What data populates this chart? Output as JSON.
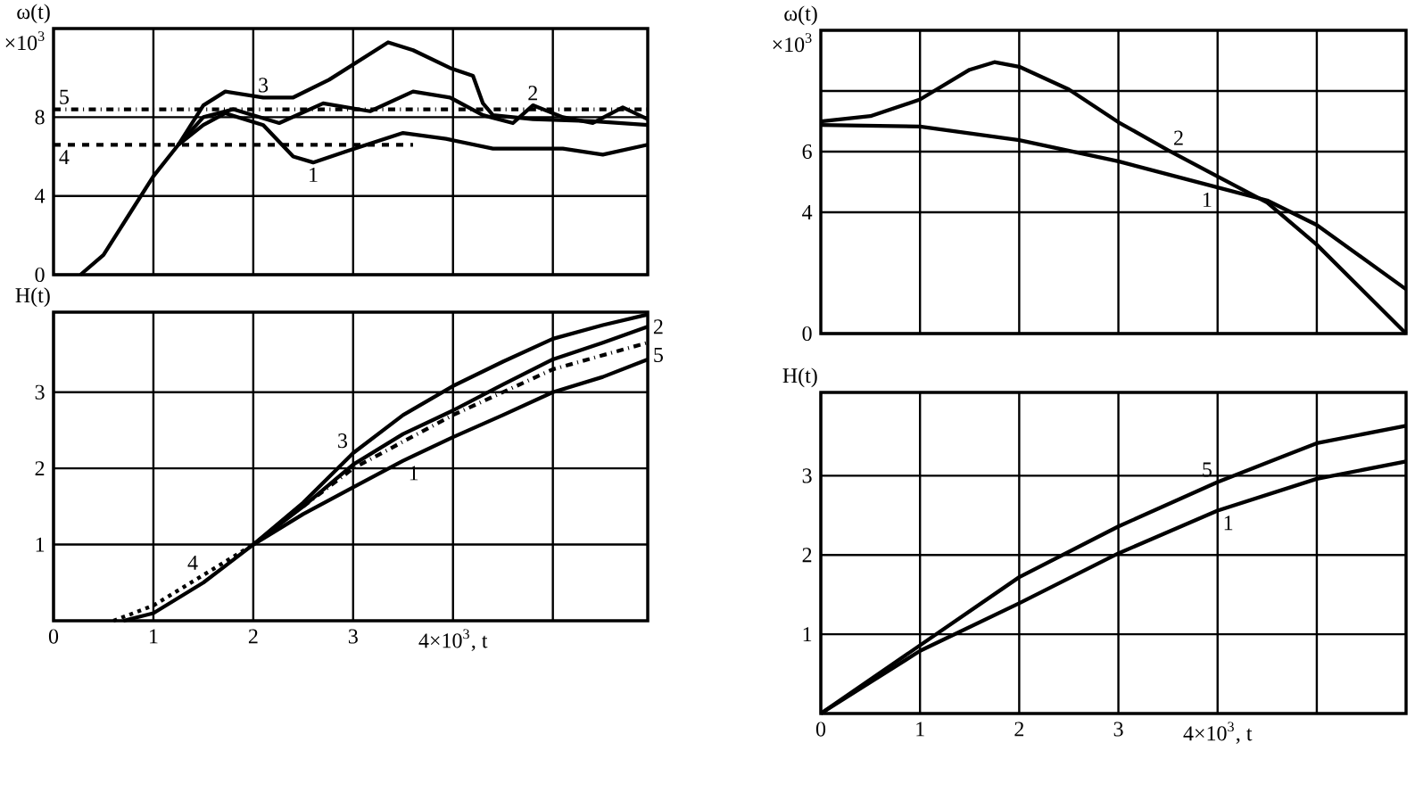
{
  "chart_data": [
    {
      "type": "line",
      "ylabel": "ω(t)",
      "annotations": [
        "×10$^{3}$"
      ],
      "xlim": [
        0,
        5.95
      ],
      "ylim": [
        0,
        12.5
      ],
      "xticks": [
        {
          "value": 1,
          "label": null
        },
        {
          "value": 2,
          "label": null
        },
        {
          "value": 3,
          "label": null
        },
        {
          "value": 4,
          "label": null
        },
        {
          "value": 5,
          "label": null
        }
      ],
      "yticks": [
        0,
        4,
        8
      ],
      "grid": true,
      "tick_labels": "y",
      "series": [
        {
          "name": "1",
          "color": "#000000",
          "line_style": "solid",
          "x": [
            0.27,
            0.5,
            0.75,
            1.0,
            1.25,
            1.5,
            1.72,
            2.1,
            2.4,
            2.6,
            2.95,
            3.5,
            3.93,
            4.4,
            5.1,
            5.5,
            5.95
          ],
          "values": [
            0,
            1.0,
            3.0,
            5.0,
            6.6,
            7.6,
            8.2,
            7.6,
            6.0,
            5.7,
            6.3,
            7.2,
            6.9,
            6.4,
            6.4,
            6.1,
            6.6
          ]
        },
        {
          "name": "2",
          "color": "#000000",
          "line_style": "solid",
          "x": [
            1.25,
            1.5,
            1.8,
            2.26,
            2.7,
            3.17,
            3.6,
            3.97,
            4.3,
            4.6,
            4.8,
            5.1,
            5.4,
            5.7,
            5.95
          ],
          "values": [
            6.6,
            8.0,
            8.4,
            7.7,
            8.7,
            8.3,
            9.3,
            9.0,
            8.1,
            7.7,
            8.6,
            8.0,
            7.7,
            8.5,
            7.9
          ]
        },
        {
          "name": "3",
          "color": "#000000",
          "line_style": "solid",
          "x": [
            1.25,
            1.5,
            1.72,
            2.1,
            2.4,
            2.76,
            3.35,
            3.6,
            3.97,
            4.2,
            4.3,
            4.4,
            4.8,
            5.4,
            5.95
          ],
          "values": [
            6.6,
            8.6,
            9.3,
            9.0,
            9.0,
            9.9,
            11.8,
            11.4,
            10.5,
            10.1,
            8.7,
            8.1,
            7.9,
            7.8,
            7.6
          ]
        },
        {
          "name": "4",
          "color": "#000000",
          "line_style": "dashed",
          "x": [
            0,
            1,
            2,
            3,
            3.6
          ],
          "values": [
            6.6,
            6.6,
            6.6,
            6.6,
            6.6
          ]
        },
        {
          "name": "5",
          "color": "#000000",
          "line_style": "dashdot",
          "x": [
            0,
            1,
            2,
            3,
            4,
            5,
            5.95
          ],
          "values": [
            8.4,
            8.4,
            8.4,
            8.4,
            8.4,
            8.4,
            8.4
          ]
        }
      ]
    },
    {
      "type": "line",
      "ylabel": "H(t)",
      "xlim": [
        0,
        5.95
      ],
      "ylim": [
        0,
        4.05
      ],
      "xticks": [
        0,
        1,
        2,
        3,
        {
          "value": 4,
          "label": "4×10$^{3}$, t"
        },
        {
          "value": 5,
          "label": null
        }
      ],
      "yticks": [
        1,
        2,
        3
      ],
      "grid": true,
      "series": [
        {
          "name": "1",
          "color": "#000000",
          "line_style": "solid",
          "x": [
            2.0,
            2.5,
            3.0,
            3.5,
            4.0,
            4.5,
            5.0,
            5.5,
            5.95
          ],
          "values": [
            1.0,
            1.4,
            1.75,
            2.1,
            2.41,
            2.7,
            3.0,
            3.2,
            3.43
          ]
        },
        {
          "name": "2",
          "color": "#000000",
          "line_style": "solid",
          "x": [
            2.0,
            2.5,
            3.0,
            3.5,
            4.0,
            4.5,
            5.0,
            5.5,
            5.95
          ],
          "values": [
            1.0,
            1.5,
            2.05,
            2.45,
            2.76,
            3.1,
            3.43,
            3.65,
            3.86
          ]
        },
        {
          "name": "3",
          "color": "#000000",
          "line_style": "solid",
          "x": [
            0.7,
            1.0,
            1.5,
            2.0,
            2.5,
            3.0,
            3.5,
            4.0,
            4.5,
            5.0,
            5.5,
            5.95
          ],
          "values": [
            0,
            0.1,
            0.5,
            1.0,
            1.55,
            2.2,
            2.7,
            3.08,
            3.4,
            3.7,
            3.88,
            4.02
          ]
        },
        {
          "name": "4",
          "color": "#000000",
          "line_style": "dotted",
          "x": [
            0.6,
            1.0,
            1.5,
            2.0
          ],
          "values": [
            0,
            0.2,
            0.6,
            1.0
          ]
        },
        {
          "name": "5",
          "color": "#000000",
          "line_style": "dashdot",
          "x": [
            2.5,
            3.0,
            4.0,
            5.0,
            5.95
          ],
          "values": [
            1.5,
            2.0,
            2.7,
            3.3,
            3.65
          ]
        }
      ]
    },
    {
      "type": "line",
      "ylabel": "ω(t)",
      "annotations": [
        "×10$^{3}$"
      ],
      "xlim": [
        0,
        5.9
      ],
      "ylim": [
        0,
        10
      ],
      "xticks": [
        {
          "value": 1,
          "label": null
        },
        {
          "value": 2,
          "label": null
        },
        {
          "value": 3,
          "label": null
        },
        {
          "value": 4,
          "label": null
        },
        {
          "value": 5,
          "label": null
        }
      ],
      "yticks": [
        0,
        4,
        6,
        {
          "value": 8,
          "label": null
        }
      ],
      "grid": true,
      "tick_labels": "y",
      "series": [
        {
          "name": "1",
          "color": "#000000",
          "line_style": "solid",
          "x": [
            0,
            1,
            2,
            3,
            4,
            4.5,
            5,
            5.9
          ],
          "values": [
            6.88,
            6.83,
            6.38,
            5.68,
            4.82,
            4.39,
            3.58,
            1.46
          ]
        },
        {
          "name": "2",
          "color": "#000000",
          "line_style": "solid",
          "x": [
            0,
            0.5,
            1,
            1.5,
            1.75,
            2,
            2.5,
            3,
            3.5,
            4,
            4.5,
            5,
            5.9
          ],
          "values": [
            7.0,
            7.17,
            7.72,
            8.7,
            8.95,
            8.8,
            8.05,
            6.97,
            6.05,
            5.18,
            4.32,
            2.93,
            0
          ]
        }
      ]
    },
    {
      "type": "line",
      "ylabel": "H(t)",
      "xlim": [
        0,
        5.9
      ],
      "ylim": [
        0,
        4.05
      ],
      "xticks": [
        0,
        1,
        2,
        3,
        {
          "value": 4,
          "label": "4×10$^{3}$, t"
        },
        {
          "value": 5,
          "label": null
        }
      ],
      "yticks": [
        1,
        2,
        3
      ],
      "grid": true,
      "series": [
        {
          "name": "5",
          "color": "#000000",
          "line_style": "solid",
          "x": [
            0,
            1,
            2,
            3,
            4,
            5,
            5.9
          ],
          "values": [
            0,
            0.86,
            1.72,
            2.36,
            2.92,
            3.41,
            3.63
          ]
        },
        {
          "name": "1",
          "color": "#000000",
          "line_style": "solid",
          "x": [
            0,
            1,
            2,
            3,
            4,
            5,
            5.9
          ],
          "values": [
            0,
            0.79,
            1.39,
            2.02,
            2.56,
            2.96,
            3.18
          ]
        }
      ]
    }
  ]
}
